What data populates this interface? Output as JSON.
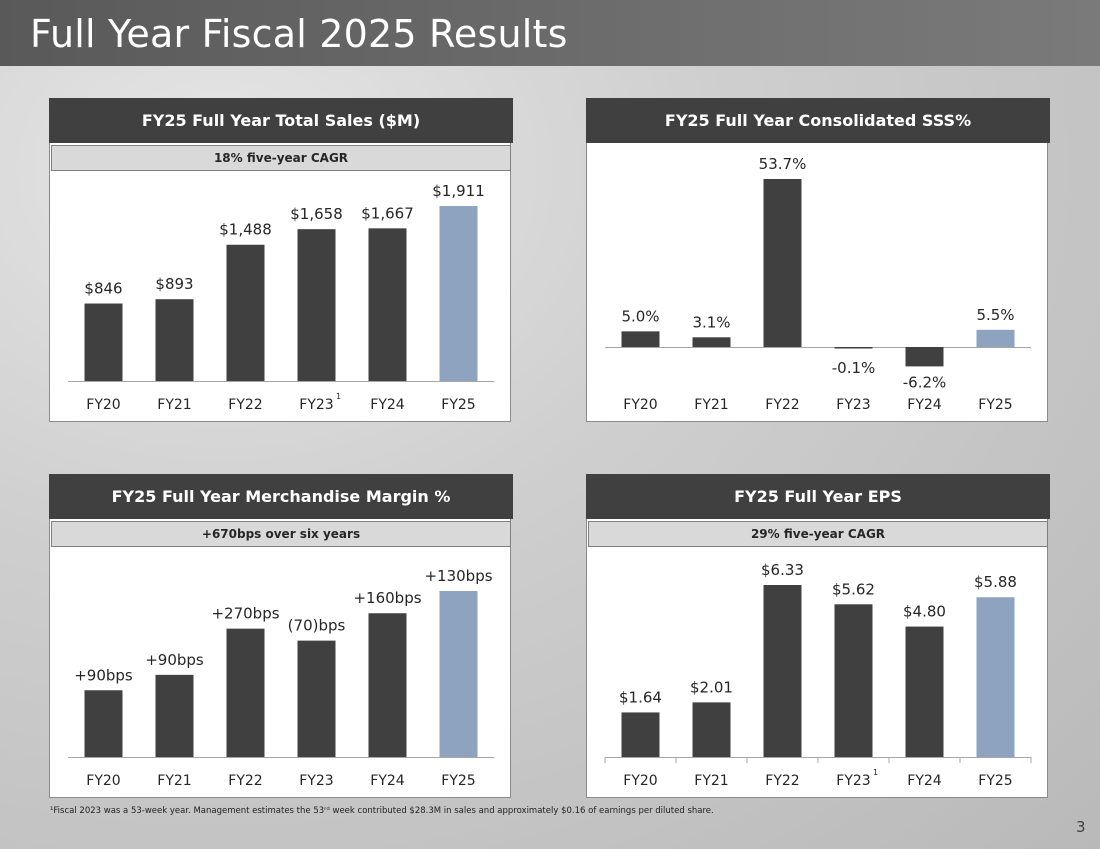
{
  "page": {
    "title": "Full Year Fiscal 2025 Results",
    "footnote": "¹Fiscal 2023 was a 53-week year. Management estimates the 53ʳᵈ week contributed $28.3M in sales and approximately $0.16 of earnings per diluted share.",
    "page_number": "3"
  },
  "colors": {
    "bar": "#404040",
    "highlight": "#8ea3bf",
    "header": "#404040",
    "sub": "#d9d9d9"
  },
  "chart_data": [
    {
      "id": "sales",
      "type": "bar",
      "title": "FY25 Full Year Total Sales ($M)",
      "subtitle": "18% five-year CAGR",
      "categories": [
        "FY20",
        "FY21",
        "FY22",
        "FY23",
        "FY24",
        "FY25"
      ],
      "values": [
        846,
        893,
        1488,
        1658,
        1667,
        1911
      ],
      "labels": [
        "$846",
        "$893",
        "$1,488",
        "$1,658",
        "$1,667",
        "$1,911"
      ],
      "footnote_marks": [
        "",
        "",
        "",
        "1",
        "",
        ""
      ],
      "highlight_index": 5,
      "ylim": [
        0,
        1911
      ]
    },
    {
      "id": "sss",
      "type": "bar",
      "title": "FY25 Full Year Consolidated SSS%",
      "subtitle": "",
      "categories": [
        "FY20",
        "FY21",
        "FY22",
        "FY23",
        "FY24",
        "FY25"
      ],
      "values": [
        5.0,
        3.1,
        53.7,
        -0.1,
        -6.2,
        5.5
      ],
      "labels": [
        "5.0%",
        "3.1%",
        "53.7%",
        "-0.1%",
        "-6.2%",
        "5.5%"
      ],
      "footnote_marks": [
        "",
        "",
        "",
        "",
        "",
        ""
      ],
      "highlight_index": 5,
      "ylim": [
        -6.2,
        53.7
      ]
    },
    {
      "id": "margin",
      "type": "bar",
      "title": "FY25 Full Year Merchandise Margin %",
      "subtitle": "+670bps over six years",
      "categories": [
        "FY20",
        "FY21",
        "FY22",
        "FY23",
        "FY24",
        "FY25"
      ],
      "values": [
        90,
        90,
        270,
        -70,
        160,
        130
      ],
      "labels": [
        "+90bps",
        "+90bps",
        "+270bps",
        "(70)bps",
        "+160bps",
        "+130bps"
      ],
      "footnote_marks": [
        "",
        "",
        "",
        "",
        "",
        ""
      ],
      "highlight_index": 5,
      "cumulative_display": true
    },
    {
      "id": "eps",
      "type": "bar",
      "title": "FY25 Full Year EPS",
      "subtitle": "29% five-year CAGR",
      "categories": [
        "FY20",
        "FY21",
        "FY22",
        "FY23",
        "FY24",
        "FY25"
      ],
      "values": [
        1.64,
        2.01,
        6.33,
        5.62,
        4.8,
        5.88
      ],
      "labels": [
        "$1.64",
        "$2.01",
        "$6.33",
        "$5.62",
        "$4.80",
        "$5.88"
      ],
      "footnote_marks": [
        "",
        "",
        "",
        "1",
        "",
        ""
      ],
      "highlight_index": 5,
      "ylim": [
        0,
        6.33
      ]
    }
  ]
}
